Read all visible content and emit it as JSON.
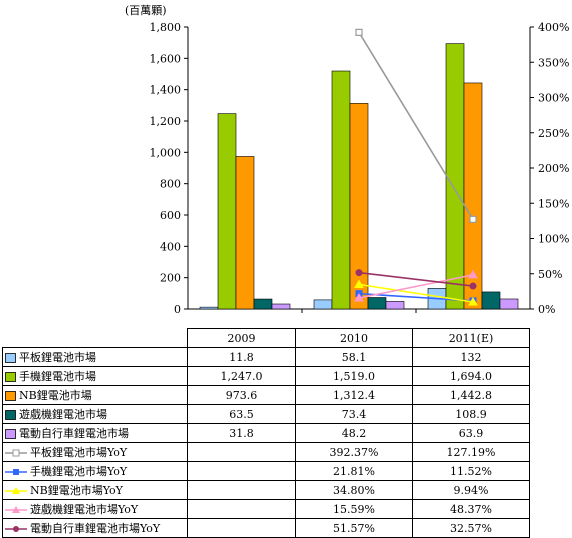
{
  "chart_data": {
    "type": "bar",
    "ylabel": "(百萬顆)",
    "ylim": [
      0,
      1800
    ],
    "yticks": [
      "0",
      "200",
      "400",
      "600",
      "800",
      "1,000",
      "1,200",
      "1,400",
      "1,600",
      "1,800"
    ],
    "y2lim": [
      0,
      400
    ],
    "y2ticks": [
      "0%",
      "50%",
      "100%",
      "150%",
      "200%",
      "250%",
      "300%",
      "350%",
      "400%"
    ],
    "categories": [
      "2009",
      "2010",
      "2011(E)"
    ],
    "bar_series": [
      {
        "name": "平板鋰電池市場",
        "color": "#99ccff",
        "values": [
          11.8,
          58.1,
          132
        ],
        "labels": [
          "11.8",
          "58.1",
          "132"
        ]
      },
      {
        "name": "手機鋰電池市場",
        "color": "#99cc00",
        "values": [
          1247.0,
          1519.0,
          1694.0
        ],
        "labels": [
          "1,247.0",
          "1,519.0",
          "1,694.0"
        ]
      },
      {
        "name": "NB鋰電池市場",
        "color": "#ff9900",
        "values": [
          973.6,
          1312.4,
          1442.8
        ],
        "labels": [
          "973.6",
          "1,312.4",
          "1,442.8"
        ]
      },
      {
        "name": "遊戲機鋰電池市場",
        "color": "#006666",
        "values": [
          63.5,
          73.4,
          108.9
        ],
        "labels": [
          "63.5",
          "73.4",
          "108.9"
        ]
      },
      {
        "name": "電動自行車鋰電池市場",
        "color": "#cc99ff",
        "values": [
          31.8,
          48.2,
          63.9
        ],
        "labels": [
          "31.8",
          "48.2",
          "63.9"
        ]
      }
    ],
    "line_series": [
      {
        "name": "平板鋰電池市場YoY",
        "color": "#999999",
        "marker": "square-open",
        "values": [
          null,
          392.37,
          127.19
        ],
        "labels": [
          "",
          "392.37%",
          "127.19%"
        ]
      },
      {
        "name": "手機鋰電池市場YoY",
        "color": "#3366ff",
        "marker": "square",
        "values": [
          null,
          21.81,
          11.52
        ],
        "labels": [
          "",
          "21.81%",
          "11.52%"
        ]
      },
      {
        "name": "NB鋰電池市場YoY",
        "color": "#ffff00",
        "marker": "triangle",
        "values": [
          null,
          34.8,
          9.94
        ],
        "labels": [
          "",
          "34.80%",
          "9.94%"
        ]
      },
      {
        "name": "遊戲機鋰電池市場YoY",
        "color": "#ff99cc",
        "marker": "triangle",
        "values": [
          null,
          15.59,
          48.37
        ],
        "labels": [
          "",
          "15.59%",
          "48.37%"
        ]
      },
      {
        "name": "電動自行車鋰電池市場YoY",
        "color": "#993366",
        "marker": "circle",
        "values": [
          null,
          51.57,
          32.57
        ],
        "labels": [
          "",
          "51.57%",
          "32.57%"
        ]
      }
    ]
  }
}
